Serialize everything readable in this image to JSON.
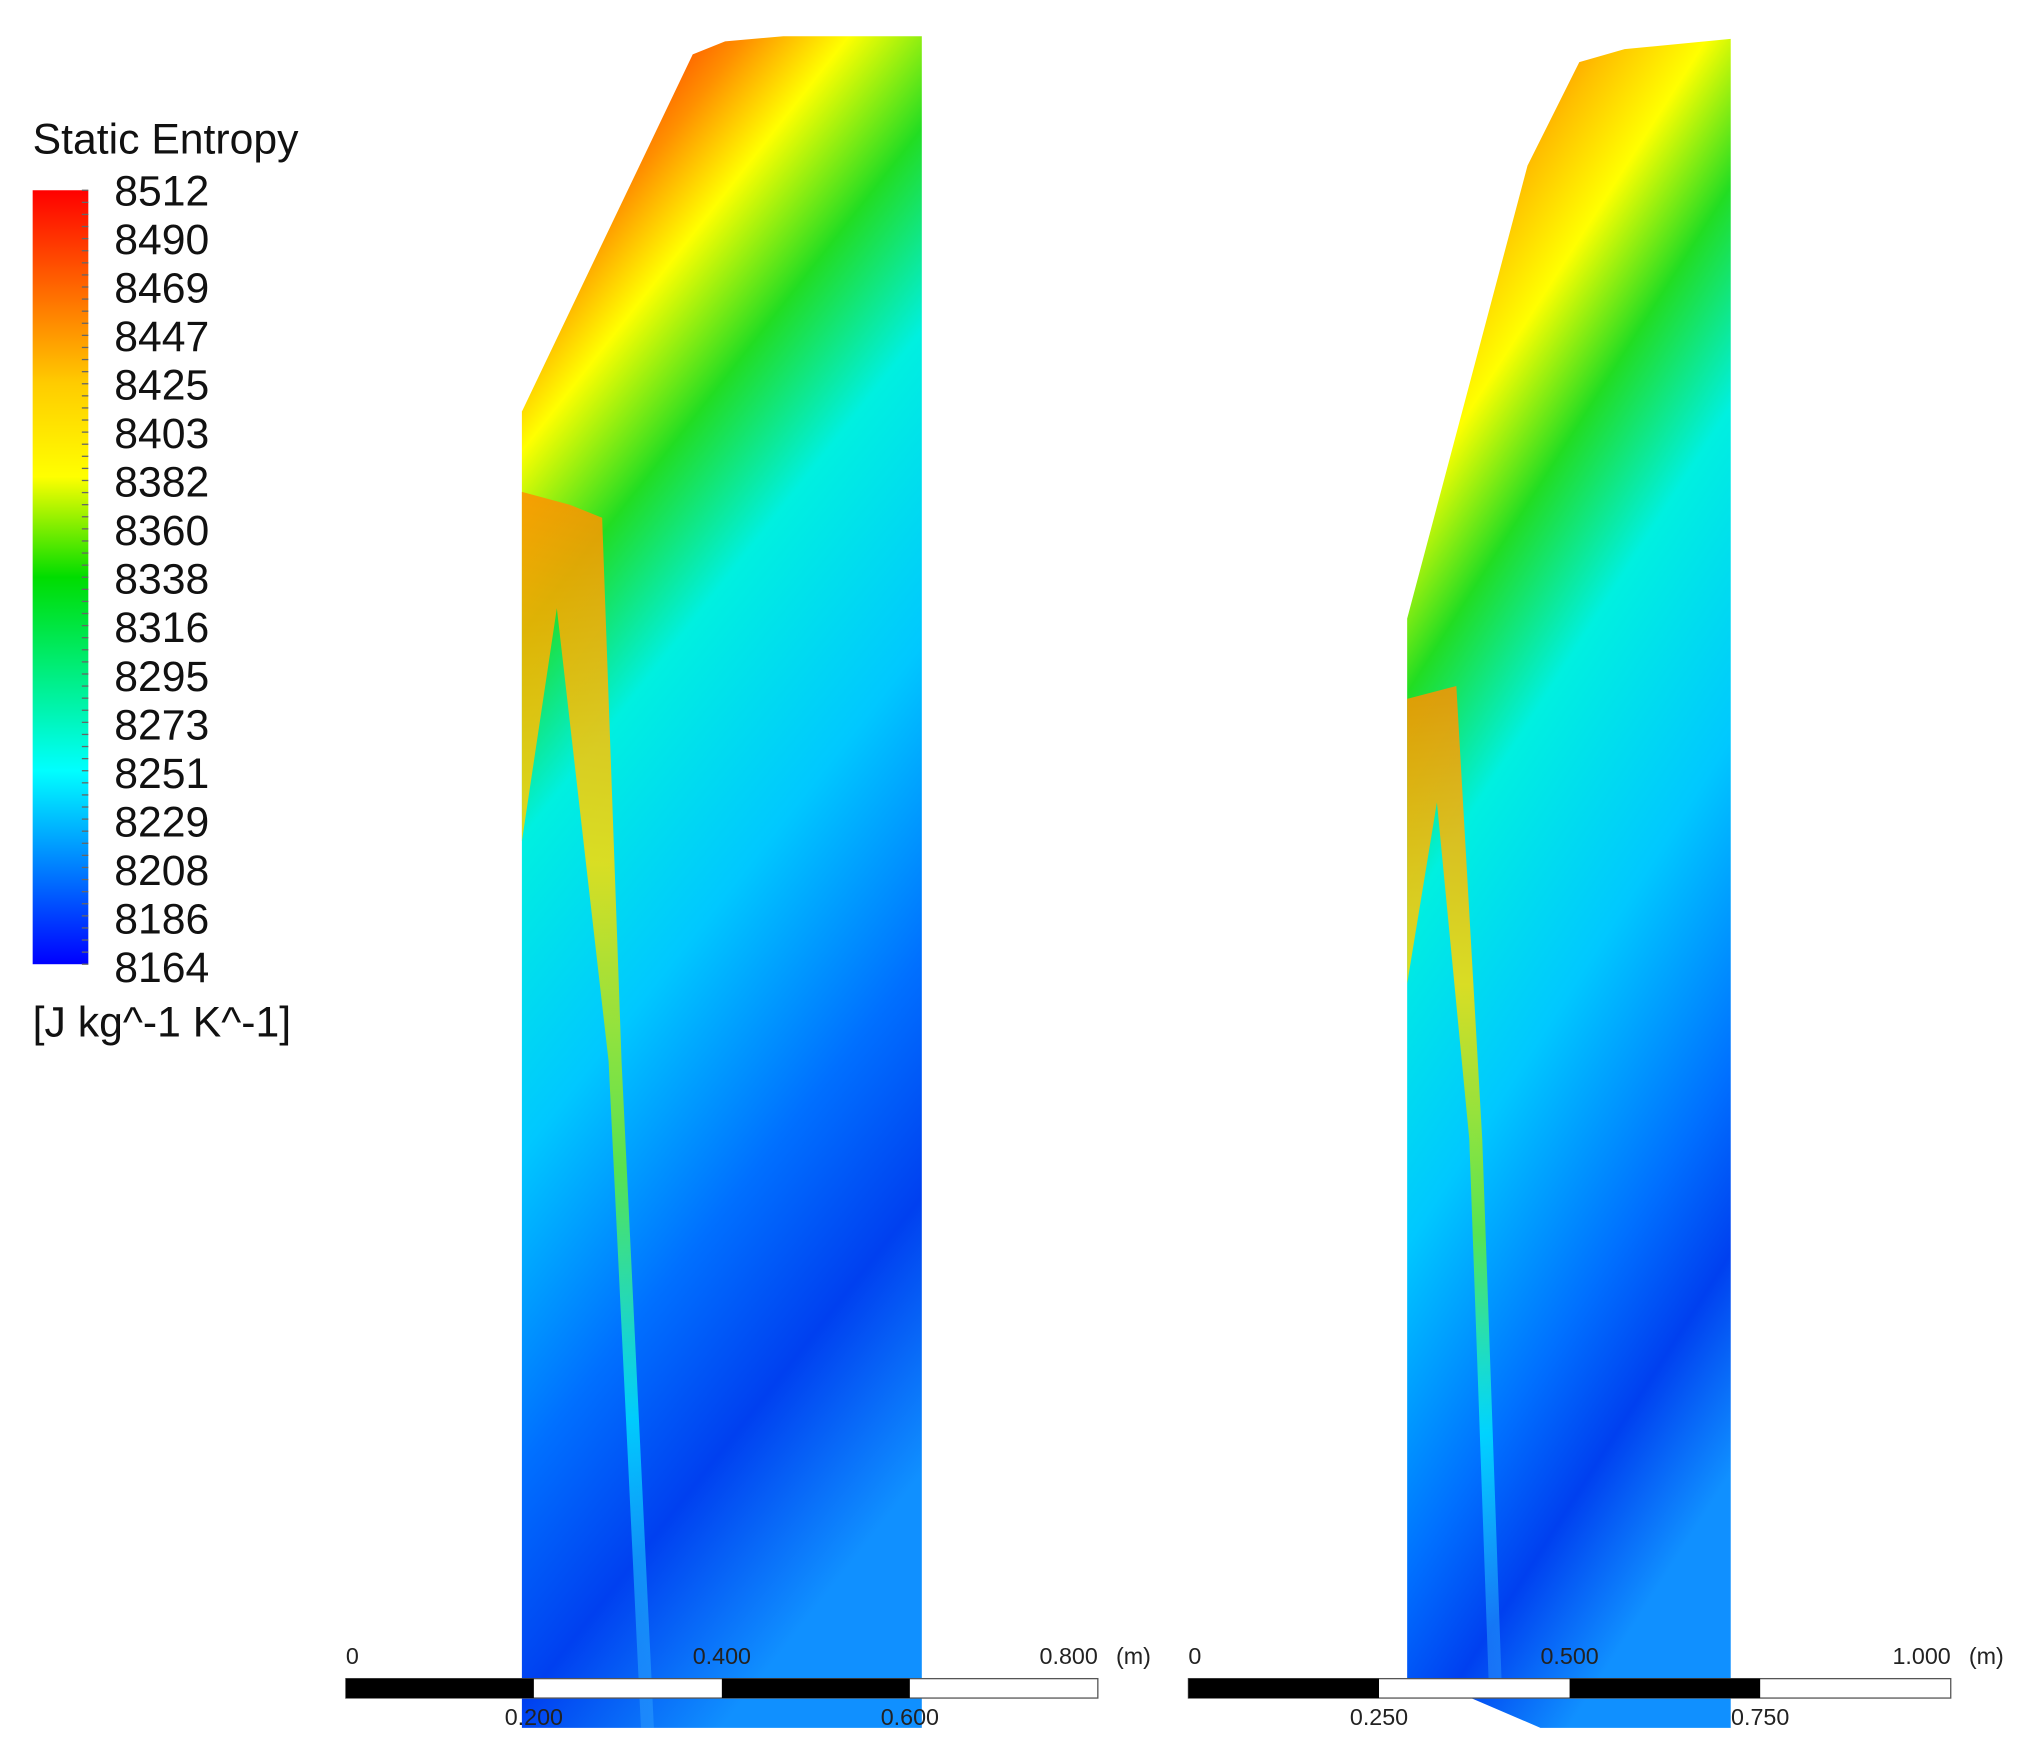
{
  "legend": {
    "title": "Static Entropy",
    "labels": [
      "8512",
      "8490",
      "8469",
      "8447",
      "8425",
      "8403",
      "8382",
      "8360",
      "8338",
      "8316",
      "8295",
      "8273",
      "8251",
      "8229",
      "8208",
      "8186",
      "8164"
    ],
    "unit": "[J kg^-1 K^-1]"
  },
  "scales": [
    {
      "top_labels": [
        "0",
        "0.400",
        "0.800"
      ],
      "bottom_labels": [
        "0.200",
        "0.600"
      ],
      "unit": "(m)"
    },
    {
      "top_labels": [
        "0",
        "0.500",
        "1.000"
      ],
      "bottom_labels": [
        "0.250",
        "0.750"
      ],
      "unit": "(m)"
    }
  ]
}
